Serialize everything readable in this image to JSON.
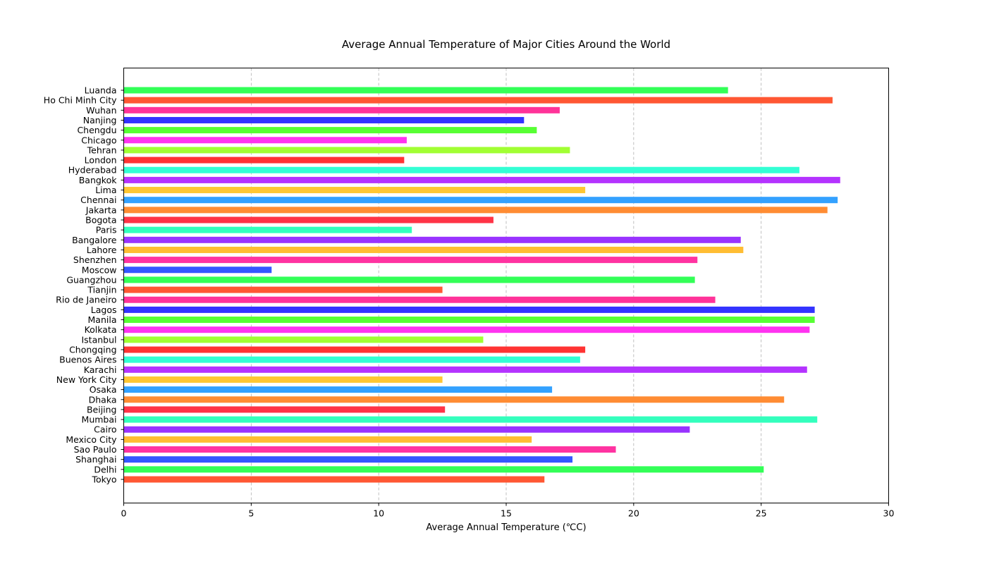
{
  "chart_data": {
    "type": "bar",
    "orientation": "horizontal",
    "title": "Average Annual Temperature of Major Cities Around the World",
    "xlabel": "Average Annual Temperature (℃C)",
    "ylabel": "",
    "xlim": [
      0,
      30
    ],
    "xticks": [
      0,
      5,
      10,
      15,
      20,
      25,
      30
    ],
    "grid": "vertical dashed",
    "legend": "none",
    "categories": [
      "Tokyo",
      "Delhi",
      "Shanghai",
      "Sao Paulo",
      "Mexico City",
      "Cairo",
      "Mumbai",
      "Beijing",
      "Dhaka",
      "Osaka",
      "New York City",
      "Karachi",
      "Buenos Aires",
      "Chongqing",
      "Istanbul",
      "Kolkata",
      "Manila",
      "Lagos",
      "Rio de Janeiro",
      "Tianjin",
      "Guangzhou",
      "Moscow",
      "Shenzhen",
      "Lahore",
      "Bangalore",
      "Paris",
      "Bogota",
      "Jakarta",
      "Chennai",
      "Lima",
      "Bangkok",
      "Hyderabad",
      "London",
      "Tehran",
      "Chicago",
      "Chengdu",
      "Nanjing",
      "Wuhan",
      "Ho Chi Minh City",
      "Luanda"
    ],
    "values": [
      16.5,
      25.1,
      17.6,
      19.3,
      16.0,
      22.2,
      27.2,
      12.6,
      25.9,
      16.8,
      12.5,
      26.8,
      17.9,
      18.1,
      14.1,
      26.9,
      27.1,
      27.1,
      23.2,
      12.5,
      22.4,
      5.8,
      22.5,
      24.3,
      24.2,
      11.3,
      14.5,
      27.6,
      28.0,
      18.1,
      28.1,
      26.5,
      11.0,
      17.5,
      11.1,
      16.2,
      15.7,
      17.1,
      27.8,
      23.7
    ],
    "colors": [
      "#ff5733",
      "#33ff57",
      "#3357ff",
      "#ff33a1",
      "#ffbd33",
      "#9933ff",
      "#33ffbd",
      "#ff3346",
      "#ff8c33",
      "#33a1ff",
      "#ffc733",
      "#b433ff",
      "#33ffd4",
      "#ff3333",
      "#a1ff33",
      "#ff33f0",
      "#57ff33",
      "#3333ff",
      "#ff3399",
      "#ff5733",
      "#33ff57",
      "#3357ff",
      "#ff33a1",
      "#ffbd33",
      "#9933ff",
      "#33ffbd",
      "#ff3346",
      "#ff8c33",
      "#33a1ff",
      "#ffc733",
      "#b433ff",
      "#33ffd4",
      "#ff3333",
      "#a1ff33",
      "#ff33f0",
      "#57ff33",
      "#3333ff",
      "#ff3399",
      "#ff5733",
      "#33ff57"
    ]
  }
}
